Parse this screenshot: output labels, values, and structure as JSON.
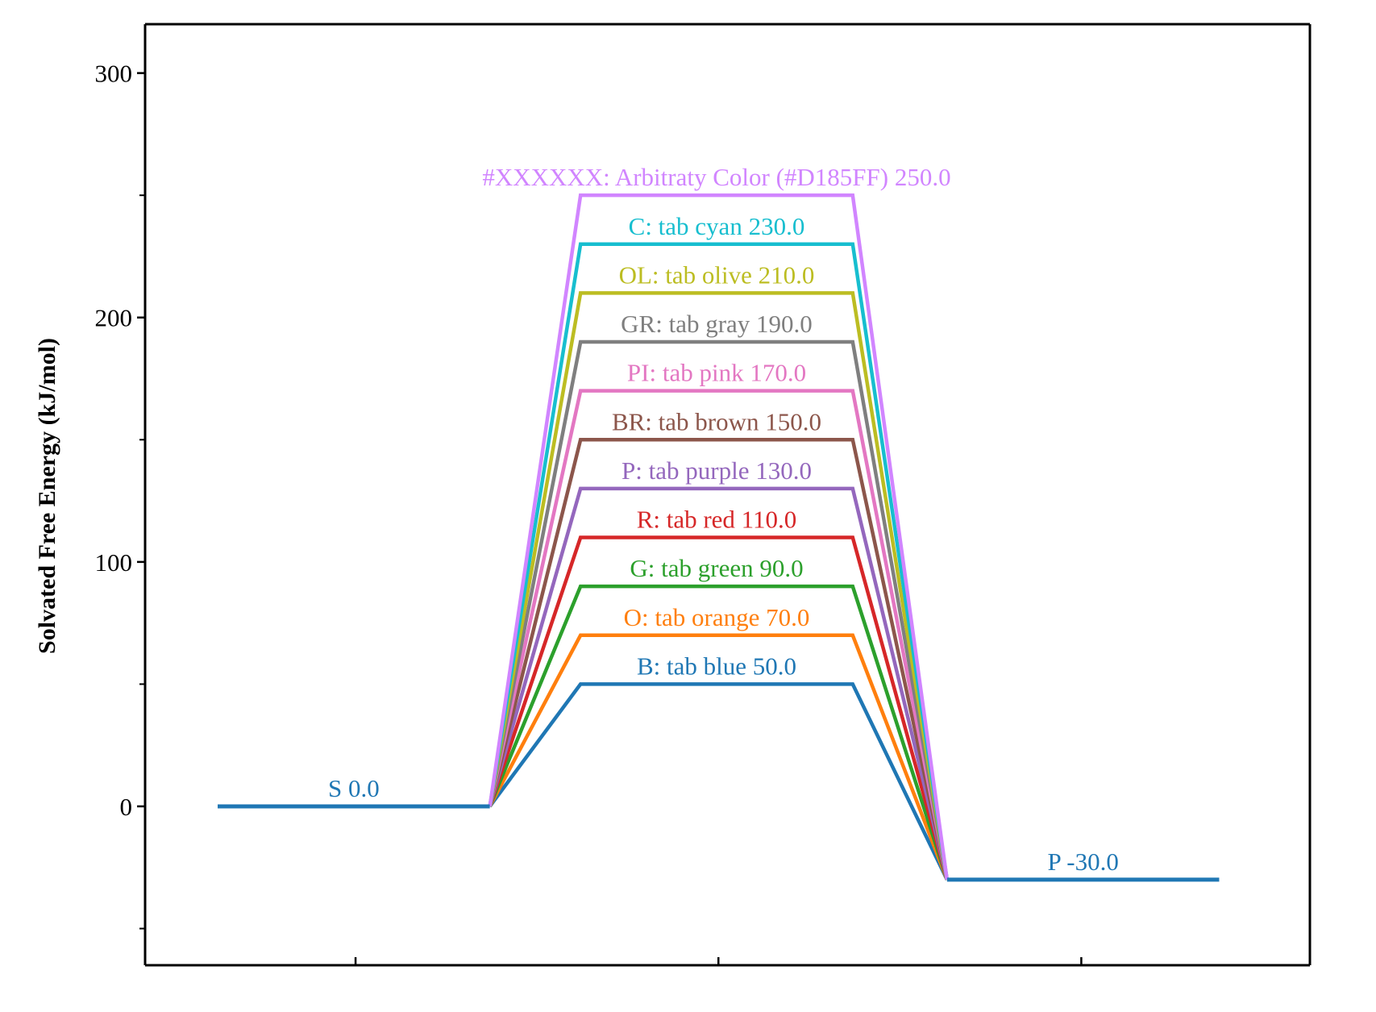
{
  "chart_data": {
    "type": "line",
    "title": "",
    "xlabel": "",
    "ylabel": "Solvated Free Energy (kJ/mol)",
    "ylim": [
      -65,
      320
    ],
    "y_ticks": [
      0,
      100,
      200,
      300
    ],
    "y_minor_ticks": [
      -50,
      50,
      150,
      250
    ],
    "x_ticks": [
      1,
      2,
      3
    ],
    "xlim": [
      0.42,
      3.63
    ],
    "grid": false,
    "legend": "none",
    "states": [
      {
        "name": "S",
        "value": 0.0,
        "label": "S  0.0",
        "color": "#1f77b4",
        "x_start": 0.62,
        "x_end": 1.37
      },
      {
        "name": "P",
        "value": -30.0,
        "label": "P  -30.0",
        "color": "#1f77b4",
        "x_start": 2.63,
        "x_end": 3.38
      }
    ],
    "series": [
      {
        "label": "B: tab  blue  50.0",
        "value": 50.0,
        "color": "#1f77b4"
      },
      {
        "label": "O: tab  orange  70.0",
        "value": 70.0,
        "color": "#ff7f0e"
      },
      {
        "label": "G: tab  green  90.0",
        "value": 90.0,
        "color": "#2ca02c"
      },
      {
        "label": "R: tab  red  110.0",
        "value": 110.0,
        "color": "#d62728"
      },
      {
        "label": "P: tab  purple  130.0",
        "value": 130.0,
        "color": "#9467bd"
      },
      {
        "label": "BR: tab  brown  150.0",
        "value": 150.0,
        "color": "#8c564b"
      },
      {
        "label": "PI: tab  pink  170.0",
        "value": 170.0,
        "color": "#e377c2"
      },
      {
        "label": "GR: tab  gray  190.0",
        "value": 190.0,
        "color": "#7f7f7f"
      },
      {
        "label": "OL: tab  olive  210.0",
        "value": 210.0,
        "color": "#bcbd22"
      },
      {
        "label": "C: tab  cyan  230.0",
        "value": 230.0,
        "color": "#17becf"
      },
      {
        "label": "#XXXXXX: Arbitraty Color (#D185FF)  250.0",
        "value": 250.0,
        "color": "#D185FF"
      }
    ],
    "ts_x_start": 1.62,
    "ts_x_end": 2.37
  }
}
